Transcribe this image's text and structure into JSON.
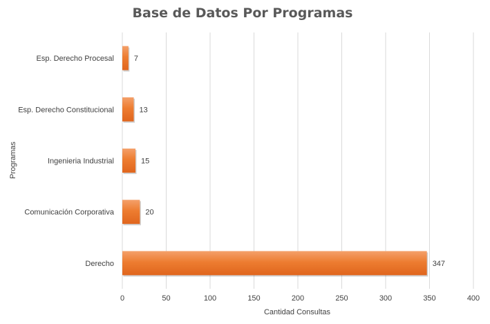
{
  "chart_data": {
    "type": "bar",
    "orientation": "horizontal",
    "title": "Base de Datos Por Programas",
    "xlabel": "Cantidad Consultas",
    "ylabel": "Programas",
    "categories": [
      "Esp. Derecho Procesal",
      "Esp. Derecho Constitucional",
      "Ingenieria Industrial",
      "Comunicación Corporativa",
      "Derecho"
    ],
    "values": [
      7,
      13,
      15,
      20,
      347
    ],
    "xlim": [
      0,
      400
    ],
    "xticks": [
      0,
      50,
      100,
      150,
      200,
      250,
      300,
      350,
      400
    ],
    "grid": true,
    "bar_color": "#ed7d31"
  }
}
